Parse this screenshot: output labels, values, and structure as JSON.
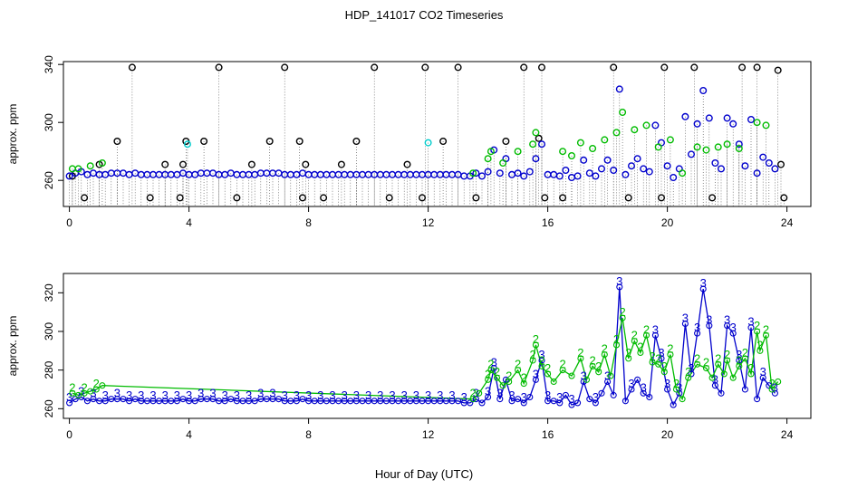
{
  "title": "HDP_141017  CO2 Timeseries",
  "xlabel": "Hour of Day (UTC)",
  "colors": {
    "black": "#000000",
    "blue": "#0000cc",
    "green": "#00bb00",
    "cyan": "#00cccc"
  },
  "chart_data": [
    {
      "type": "scatter",
      "ylabel": "approx. ppm",
      "xlim": [
        -0.2,
        24.8
      ],
      "ylim": [
        242,
        342
      ],
      "x_ticks": [
        "0",
        "4",
        "8",
        "12",
        "16",
        "20",
        "24"
      ],
      "y_ticks": [
        "260",
        "300",
        "340"
      ],
      "drop_lines": true,
      "series": [
        {
          "marker": "circle",
          "color": "black",
          "x": [
            0.1,
            0.5,
            1.0,
            1.6,
            2.1,
            2.7,
            3.2,
            3.7,
            3.8,
            3.9,
            4.5,
            5.0,
            5.6,
            6.1,
            6.7,
            7.2,
            7.7,
            7.8,
            7.9,
            8.5,
            9.1,
            9.6,
            10.2,
            10.7,
            11.3,
            11.8,
            11.9,
            12.5,
            13.0,
            13.6,
            14.6,
            15.2,
            15.7,
            15.8,
            15.9,
            16.5,
            18.2,
            18.7,
            19.8,
            19.9,
            20.9,
            21.5,
            22.5,
            23.0,
            23.7,
            23.8,
            23.9
          ],
          "y": [
            263,
            248,
            271,
            287,
            338,
            248,
            271,
            248,
            271,
            287,
            287,
            338,
            248,
            271,
            287,
            338,
            287,
            248,
            271,
            248,
            271,
            287,
            338,
            248,
            271,
            248,
            338,
            287,
            338,
            248,
            287,
            338,
            289,
            338,
            248,
            248,
            338,
            248,
            248,
            338,
            338,
            248,
            338,
            338,
            336,
            271,
            248
          ]
        },
        {
          "marker": "circle",
          "color": "blue",
          "x": [
            0.0,
            0.2,
            0.4,
            0.6,
            0.8,
            1.0,
            1.2,
            1.4,
            1.6,
            1.8,
            2.0,
            2.2,
            2.4,
            2.6,
            2.8,
            3.0,
            3.2,
            3.4,
            3.6,
            3.8,
            4.0,
            4.2,
            4.4,
            4.6,
            4.8,
            5.0,
            5.2,
            5.4,
            5.6,
            5.8,
            6.0,
            6.2,
            6.4,
            6.6,
            6.8,
            7.0,
            7.2,
            7.4,
            7.6,
            7.8,
            8.0,
            8.2,
            8.4,
            8.6,
            8.8,
            9.0,
            9.2,
            9.4,
            9.6,
            9.8,
            10.0,
            10.2,
            10.4,
            10.6,
            10.8,
            11.0,
            11.2,
            11.4,
            11.6,
            11.8,
            12.0,
            12.2,
            12.4,
            12.6,
            12.8,
            13.0,
            13.2,
            13.4,
            13.6,
            13.8,
            14.0,
            14.2,
            14.4,
            14.6,
            14.8,
            15.0,
            15.2,
            15.4,
            15.6,
            15.8,
            16.0,
            16.2,
            16.4,
            16.6,
            16.8,
            17.0,
            17.2,
            17.4,
            17.6,
            17.8,
            18.0,
            18.2,
            18.4,
            18.6,
            18.8,
            19.0,
            19.2,
            19.4,
            19.6,
            19.8,
            20.0,
            20.2,
            20.4,
            20.6,
            20.8,
            21.0,
            21.2,
            21.4,
            21.6,
            21.8,
            22.0,
            22.2,
            22.4,
            22.6,
            22.8,
            23.0,
            23.2,
            23.4,
            23.6
          ],
          "y": [
            263,
            265,
            266,
            264,
            265,
            264,
            264,
            265,
            265,
            265,
            264,
            265,
            264,
            264,
            264,
            264,
            264,
            264,
            264,
            265,
            264,
            264,
            265,
            265,
            265,
            264,
            264,
            265,
            264,
            264,
            264,
            264,
            265,
            265,
            265,
            265,
            264,
            264,
            264,
            265,
            264,
            264,
            264,
            264,
            264,
            264,
            264,
            264,
            264,
            264,
            264,
            264,
            264,
            264,
            264,
            264,
            264,
            264,
            264,
            264,
            264,
            264,
            264,
            264,
            264,
            264,
            263,
            263,
            265,
            263,
            266,
            281,
            265,
            275,
            264,
            265,
            263,
            266,
            275,
            285,
            264,
            264,
            263,
            267,
            262,
            263,
            274,
            265,
            263,
            268,
            274,
            267,
            323,
            264,
            270,
            275,
            268,
            266,
            298,
            286,
            270,
            262,
            268,
            304,
            278,
            299,
            322,
            303,
            272,
            268,
            303,
            299,
            285,
            270,
            302,
            265,
            276,
            272,
            268
          ]
        },
        {
          "marker": "circle",
          "color": "green",
          "x": [
            0.1,
            0.3,
            0.7,
            1.1,
            13.5,
            14.0,
            14.1,
            14.5,
            15.0,
            15.5,
            15.6,
            16.5,
            16.8,
            17.1,
            17.5,
            17.9,
            18.3,
            18.5,
            18.9,
            19.3,
            19.7,
            20.1,
            20.5,
            21.0,
            21.3,
            21.7,
            22.0,
            22.4,
            23.0,
            23.3
          ],
          "y": [
            268,
            268,
            270,
            272,
            265,
            275,
            280,
            272,
            280,
            285,
            293,
            280,
            277,
            286,
            282,
            288,
            293,
            307,
            295,
            298,
            283,
            288,
            265,
            283,
            281,
            283,
            285,
            282,
            300,
            298
          ]
        },
        {
          "marker": "circle",
          "color": "cyan",
          "x": [
            3.95,
            12.0
          ],
          "y": [
            285,
            286
          ]
        }
      ]
    },
    {
      "type": "line",
      "ylabel": "approx. ppm",
      "xlim": [
        -0.2,
        24.8
      ],
      "ylim": [
        255,
        330
      ],
      "x_ticks": [
        "0",
        "4",
        "8",
        "12",
        "16",
        "20",
        "24"
      ],
      "y_ticks": [
        "260",
        "280",
        "300",
        "320"
      ],
      "markers": [
        "circle",
        "3",
        "2"
      ],
      "series": [
        {
          "marker": "3",
          "color": "blue",
          "x": [
            0.0,
            0.2,
            0.4,
            0.6,
            0.8,
            1.0,
            1.2,
            1.4,
            1.6,
            1.8,
            2.0,
            2.2,
            2.4,
            2.6,
            2.8,
            3.0,
            3.2,
            3.4,
            3.6,
            3.8,
            4.0,
            4.2,
            4.4,
            4.6,
            4.8,
            5.0,
            5.2,
            5.4,
            5.6,
            5.8,
            6.0,
            6.2,
            6.4,
            6.6,
            6.8,
            7.0,
            7.2,
            7.4,
            7.6,
            7.8,
            8.0,
            8.2,
            8.4,
            8.6,
            8.8,
            9.0,
            9.2,
            9.4,
            9.6,
            9.8,
            10.0,
            10.2,
            10.4,
            10.6,
            10.8,
            11.0,
            11.2,
            11.4,
            11.6,
            11.8,
            12.0,
            12.2,
            12.4,
            12.6,
            12.8,
            13.0,
            13.2,
            13.4,
            13.6,
            13.8,
            14.0,
            14.2,
            14.4,
            14.6,
            14.8,
            15.0,
            15.2,
            15.4,
            15.6,
            15.8,
            16.0,
            16.2,
            16.4,
            16.6,
            16.8,
            17.0,
            17.2,
            17.4,
            17.6,
            17.8,
            18.0,
            18.2,
            18.4,
            18.6,
            18.8,
            19.0,
            19.2,
            19.4,
            19.6,
            19.8,
            20.0,
            20.2,
            20.4,
            20.6,
            20.8,
            21.0,
            21.2,
            21.4,
            21.6,
            21.8,
            22.0,
            22.2,
            22.4,
            22.6,
            22.8,
            23.0,
            23.2,
            23.4,
            23.6
          ],
          "y": [
            263,
            265,
            266,
            264,
            265,
            264,
            264,
            265,
            265,
            265,
            264,
            265,
            264,
            264,
            264,
            264,
            264,
            264,
            264,
            265,
            264,
            264,
            265,
            265,
            265,
            264,
            264,
            265,
            264,
            264,
            264,
            264,
            265,
            265,
            265,
            265,
            264,
            264,
            264,
            265,
            264,
            264,
            264,
            264,
            264,
            264,
            264,
            264,
            264,
            264,
            264,
            264,
            264,
            264,
            264,
            264,
            264,
            264,
            264,
            264,
            264,
            264,
            264,
            264,
            264,
            264,
            263,
            263,
            265,
            263,
            266,
            281,
            265,
            275,
            264,
            265,
            263,
            266,
            275,
            285,
            264,
            264,
            263,
            267,
            262,
            263,
            274,
            265,
            263,
            268,
            274,
            267,
            323,
            264,
            270,
            275,
            268,
            266,
            298,
            286,
            270,
            262,
            268,
            304,
            278,
            299,
            322,
            303,
            272,
            268,
            303,
            299,
            285,
            270,
            302,
            265,
            276,
            272,
            268
          ]
        },
        {
          "marker": "2",
          "color": "green",
          "x": [
            0.1,
            0.3,
            0.5,
            0.7,
            0.9,
            1.1,
            13.5,
            13.7,
            14.0,
            14.1,
            14.3,
            14.5,
            14.7,
            15.0,
            15.2,
            15.5,
            15.6,
            15.8,
            16.0,
            16.2,
            16.5,
            16.8,
            17.1,
            17.3,
            17.5,
            17.7,
            17.9,
            18.1,
            18.3,
            18.5,
            18.7,
            18.9,
            19.1,
            19.3,
            19.5,
            19.7,
            19.9,
            20.1,
            20.3,
            20.5,
            20.7,
            21.0,
            21.3,
            21.5,
            21.7,
            21.9,
            22.0,
            22.2,
            22.4,
            22.6,
            22.8,
            23.0,
            23.1,
            23.3,
            23.5,
            23.7
          ],
          "y": [
            268,
            267,
            268,
            269,
            270,
            272,
            265,
            268,
            275,
            280,
            276,
            272,
            274,
            280,
            273,
            285,
            293,
            282,
            278,
            274,
            280,
            277,
            286,
            275,
            282,
            279,
            288,
            277,
            293,
            307,
            286,
            295,
            289,
            298,
            284,
            283,
            279,
            288,
            270,
            265,
            276,
            283,
            281,
            276,
            283,
            278,
            285,
            276,
            282,
            286,
            278,
            300,
            290,
            298,
            270,
            274
          ]
        }
      ]
    }
  ]
}
